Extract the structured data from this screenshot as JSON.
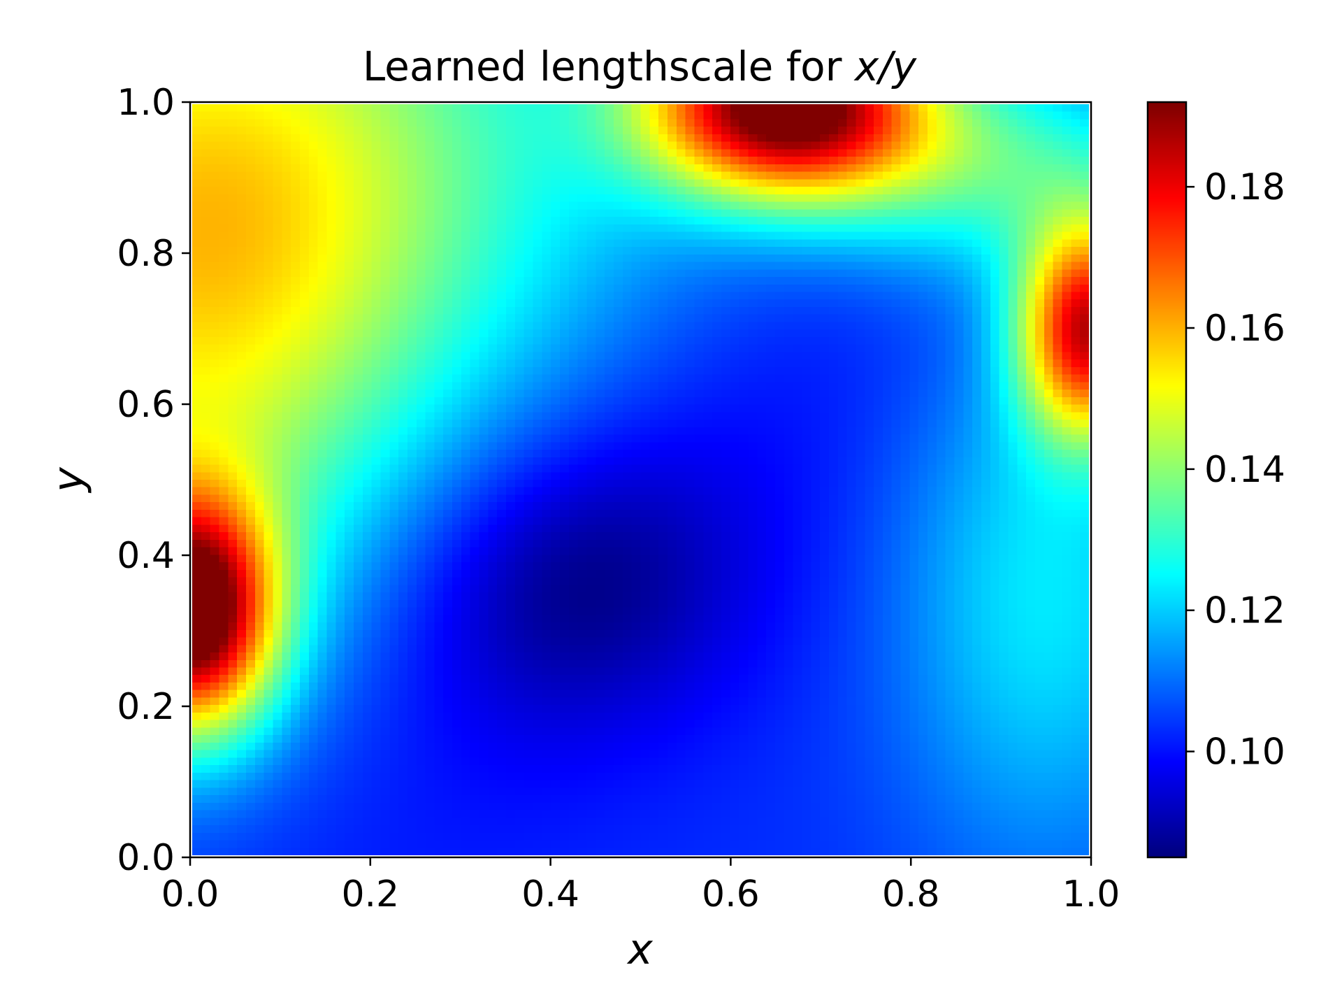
{
  "chart_data": {
    "type": "heatmap",
    "title": "Learned lengthscale for x/y",
    "title_plain": "Learned lengthscale for ",
    "title_math": "x/y",
    "xlabel": "x",
    "ylabel": "y",
    "xlim": [
      0.0,
      1.0
    ],
    "ylim": [
      0.0,
      1.0
    ],
    "x_ticks": [
      "0.0",
      "0.2",
      "0.4",
      "0.6",
      "0.8",
      "1.0"
    ],
    "y_ticks": [
      "0.0",
      "0.2",
      "0.4",
      "0.6",
      "0.8",
      "1.0"
    ],
    "colormap": "jet",
    "colorbar": {
      "vmin": 0.085,
      "vmax": 0.192,
      "ticks": [
        "0.10",
        "0.12",
        "0.14",
        "0.16",
        "0.18"
      ]
    },
    "grid_resolution": 100,
    "field_model": {
      "description_of_values": "lengthscale value as function of (x, y)",
      "base": 0.103,
      "components": [
        {
          "kind": "gaussian",
          "cx": 0.0,
          "cy": 0.32,
          "sx": 0.065,
          "sy": 0.11,
          "amp": 0.088
        },
        {
          "kind": "gaussian",
          "cx": 0.66,
          "cy": 1.0,
          "sx": 0.11,
          "sy": 0.085,
          "amp": 0.088
        },
        {
          "kind": "gaussian",
          "cx": 1.0,
          "cy": 0.7,
          "sx": 0.055,
          "sy": 0.1,
          "amp": 0.075
        },
        {
          "kind": "gaussian",
          "cx": 0.05,
          "cy": 0.93,
          "sx": 0.3,
          "sy": 0.28,
          "amp": 0.04
        },
        {
          "kind": "gaussian",
          "cx": 0.0,
          "cy": 0.62,
          "sx": 0.18,
          "sy": 0.3,
          "amp": 0.025
        },
        {
          "kind": "gaussian",
          "cx": 0.95,
          "cy": 0.35,
          "sx": 0.12,
          "sy": 0.26,
          "amp": 0.02
        },
        {
          "kind": "gaussian",
          "cx": 0.88,
          "cy": 0.92,
          "sx": 0.16,
          "sy": 0.1,
          "amp": 0.028
        },
        {
          "kind": "gaussian",
          "cx": 0.42,
          "cy": 0.37,
          "sx": 0.13,
          "sy": 0.13,
          "amp": -0.014
        }
      ]
    }
  },
  "colors": {
    "frame": "#000000",
    "background": "#ffffff"
  }
}
